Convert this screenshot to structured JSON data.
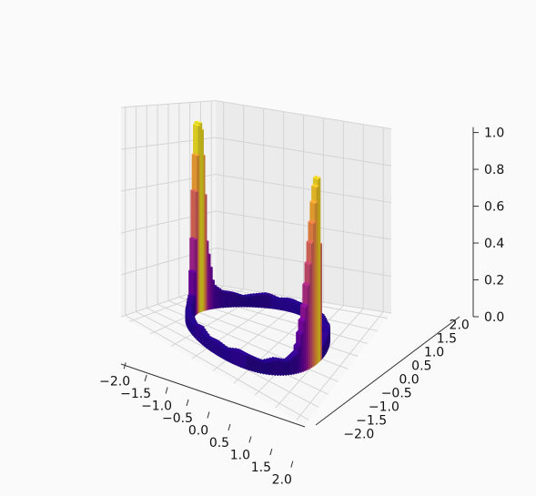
{
  "chart_data": {
    "type": "bar3d",
    "title": "",
    "xlabel": "",
    "ylabel": "",
    "zlabel": "",
    "xlim": [
      -2.2,
      2.2
    ],
    "ylim": [
      -2.2,
      2.2
    ],
    "zlim": [
      0,
      1.0
    ],
    "x_ticks": [
      "−2.0",
      "−1.5",
      "−1.0",
      "−0.5",
      "0.0",
      "0.5",
      "1.0",
      "1.5",
      "2.0"
    ],
    "y_ticks": [
      "−2.0",
      "−1.5",
      "−1.0",
      "−0.5",
      "0.0",
      "0.5",
      "1.0",
      "1.5",
      "2.0"
    ],
    "z_ticks": [
      "0.0",
      "0.2",
      "0.4",
      "0.6",
      "0.8",
      "1.0"
    ],
    "grid": true,
    "colormap": "plasma",
    "ring_radius": 1.5,
    "series": [
      {
        "description": "bars placed on a circle of radius 1.5; height as a function of angle (degrees from +x axis)",
        "angle_deg": [
          0,
          8,
          15,
          22,
          30,
          40,
          50,
          60,
          70,
          80,
          90,
          100,
          110,
          120,
          130,
          140,
          150,
          160,
          168,
          172,
          176,
          180,
          184,
          188,
          192,
          200,
          210,
          220,
          230,
          240,
          250,
          260,
          270,
          280,
          290,
          300,
          310,
          320,
          330,
          338,
          345,
          352,
          356
        ],
        "height": [
          0.06,
          0.07,
          0.08,
          0.06,
          0.07,
          0.05,
          0.06,
          0.05,
          0.06,
          0.05,
          0.06,
          0.05,
          0.07,
          0.06,
          0.05,
          0.07,
          0.08,
          0.12,
          0.35,
          0.75,
          0.97,
          0.95,
          0.7,
          0.3,
          0.1,
          0.06,
          0.05,
          0.06,
          0.05,
          0.07,
          0.05,
          0.06,
          0.05,
          0.07,
          0.06,
          0.05,
          0.07,
          0.06,
          0.1,
          0.3,
          0.6,
          0.88,
          0.94
        ]
      }
    ]
  }
}
